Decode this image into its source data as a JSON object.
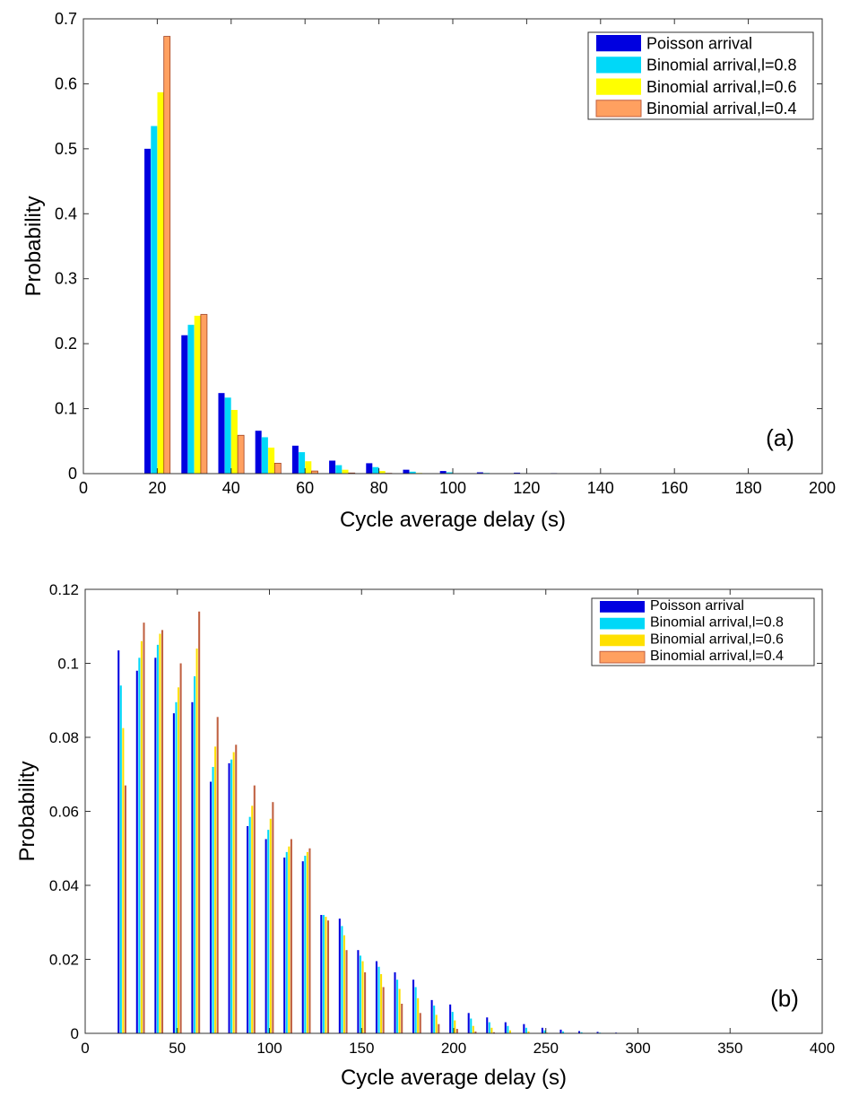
{
  "chart_data": [
    {
      "type": "bar",
      "panel_label": "(a)",
      "xlabel": "Cycle average delay (s)",
      "ylabel": "Probability",
      "xlim": [
        0,
        200
      ],
      "ylim": [
        0,
        0.7
      ],
      "xticks": [
        0,
        20,
        40,
        60,
        80,
        100,
        120,
        140,
        160,
        180,
        200
      ],
      "yticks": [
        0,
        0.1,
        0.2,
        0.3,
        0.4,
        0.5,
        0.6,
        0.7
      ],
      "legend_position": "top-right",
      "x": [
        20,
        30,
        40,
        50,
        60,
        70,
        80,
        90,
        100,
        110,
        120,
        130,
        140
      ],
      "series": [
        {
          "name": "Poisson arrival",
          "color": "#0000e0",
          "values": [
            0.5,
            0.213,
            0.124,
            0.066,
            0.043,
            0.02,
            0.016,
            0.006,
            0.004,
            0.002,
            0.0015,
            0.0008,
            0.0005
          ]
        },
        {
          "name": "Binomial arrival,l=0.8",
          "color": "#00d8f8",
          "values": [
            0.535,
            0.229,
            0.117,
            0.056,
            0.033,
            0.013,
            0.01,
            0.003,
            0.002,
            0.001,
            0.0005,
            0,
            0
          ]
        },
        {
          "name": "Binomial arrival,l=0.6",
          "color": "#ffff00",
          "values": [
            0.587,
            0.243,
            0.098,
            0.04,
            0.019,
            0.006,
            0.004,
            0.001,
            0.0005,
            0,
            0,
            0,
            0
          ]
        },
        {
          "name": "Binomial arrival,l=0.4",
          "color": "#ffa060",
          "values": [
            0.673,
            0.245,
            0.059,
            0.016,
            0.004,
            0.001,
            0.0005,
            0,
            0,
            0,
            0,
            0,
            0
          ]
        }
      ]
    },
    {
      "type": "bar",
      "panel_label": "(b)",
      "xlabel": "Cycle average delay (s)",
      "ylabel": "Probability",
      "xlim": [
        0,
        400
      ],
      "ylim": [
        0,
        0.12
      ],
      "xticks": [
        0,
        50,
        100,
        150,
        200,
        250,
        300,
        350,
        400
      ],
      "yticks": [
        0,
        0.02,
        0.04,
        0.06,
        0.08,
        0.1,
        0.12
      ],
      "legend_position": "top-right",
      "x": [
        20,
        30,
        40,
        50,
        60,
        70,
        80,
        90,
        100,
        110,
        120,
        130,
        140,
        150,
        160,
        170,
        180,
        190,
        200,
        210,
        220,
        230,
        240,
        250,
        260,
        270,
        280,
        290,
        300
      ],
      "series": [
        {
          "name": "Poisson arrival",
          "color": "#0000e0",
          "values": [
            0.1035,
            0.098,
            0.1015,
            0.0865,
            0.0895,
            0.068,
            0.073,
            0.056,
            0.0525,
            0.0475,
            0.0465,
            0.032,
            0.031,
            0.0225,
            0.0195,
            0.0165,
            0.0145,
            0.009,
            0.0078,
            0.0055,
            0.0043,
            0.003,
            0.0025,
            0.0015,
            0.001,
            0.0006,
            0.0004,
            0.0002,
            0.0001
          ]
        },
        {
          "name": "Binomial arrival,l=0.8",
          "color": "#00d8f8",
          "values": [
            0.094,
            0.1015,
            0.105,
            0.0895,
            0.0965,
            0.072,
            0.074,
            0.0585,
            0.055,
            0.049,
            0.048,
            0.032,
            0.029,
            0.021,
            0.018,
            0.0145,
            0.0125,
            0.0075,
            0.0058,
            0.004,
            0.003,
            0.002,
            0.0015,
            0.0008,
            0.0005,
            0.0003,
            0.0002,
            0.0001,
            0
          ]
        },
        {
          "name": "Binomial arrival,l=0.6",
          "color": "#ffe000",
          "values": [
            0.0825,
            0.106,
            0.108,
            0.0935,
            0.104,
            0.0775,
            0.076,
            0.0615,
            0.058,
            0.0505,
            0.049,
            0.0315,
            0.0265,
            0.0195,
            0.016,
            0.012,
            0.0095,
            0.005,
            0.0035,
            0.002,
            0.0015,
            0.0008,
            0.0005,
            0.0002,
            0.0001,
            0,
            0,
            0,
            0
          ]
        },
        {
          "name": "Binomial arrival,l=0.4",
          "color": "#c06040",
          "legend_color": "#ffa060",
          "values": [
            0.067,
            0.111,
            0.109,
            0.1,
            0.114,
            0.0855,
            0.078,
            0.067,
            0.0625,
            0.0525,
            0.05,
            0.0305,
            0.0225,
            0.0165,
            0.0125,
            0.008,
            0.0055,
            0.0025,
            0.0012,
            0.0005,
            0.0003,
            0.0001,
            0,
            0,
            0,
            0,
            0,
            0,
            0
          ]
        }
      ]
    }
  ]
}
